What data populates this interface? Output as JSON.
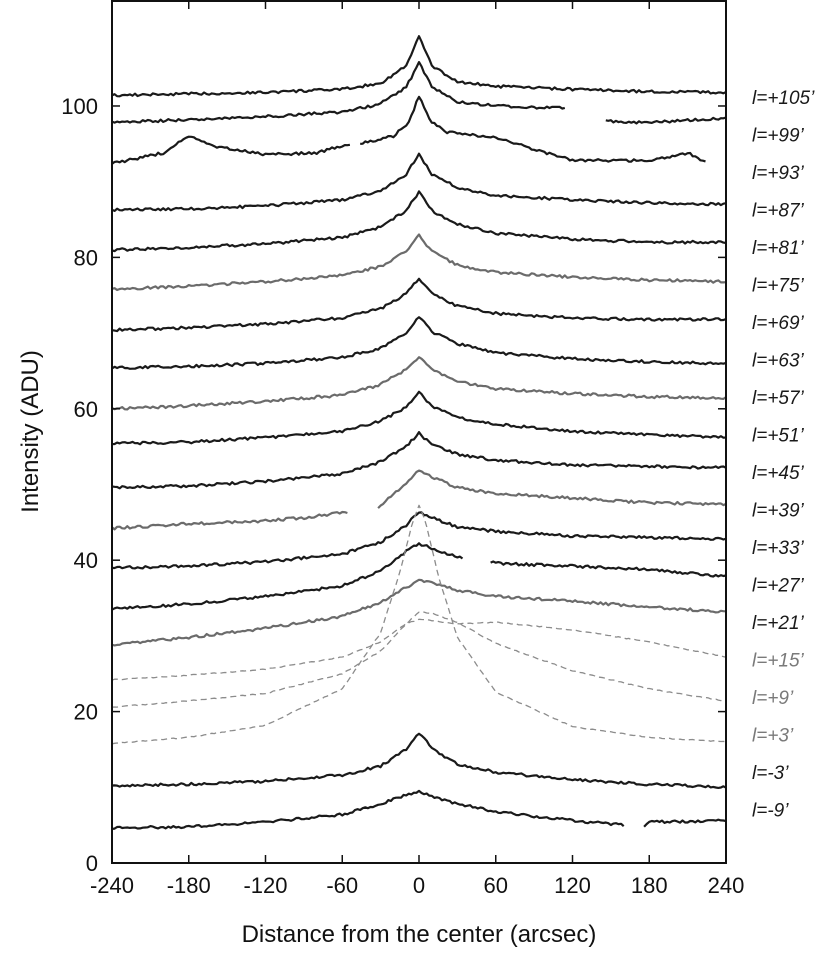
{
  "chart_data": {
    "type": "line",
    "title": "",
    "xlabel": "Distance from the center (arcsec)",
    "ylabel": "Intensity (ADU)",
    "xlim": [
      -240,
      240
    ],
    "ylim": [
      0,
      114
    ],
    "xticks": [
      -240,
      -180,
      -120,
      -60,
      0,
      60,
      120,
      180,
      240
    ],
    "xtick_labels": [
      "-240",
      "-180",
      "-120",
      "-60",
      "0",
      "60",
      "120",
      "180",
      "240"
    ],
    "yticks": [
      0,
      20,
      40,
      60,
      80,
      100
    ],
    "ytick_labels": [
      "0",
      "20",
      "40",
      "60",
      "80",
      "100"
    ],
    "grid": false,
    "legend": "none",
    "colors": {
      "black": "#1a1a1a",
      "gray": "#6b6b6b",
      "light": "#8c8c8c"
    },
    "series": [
      {
        "name": "l=+105’",
        "style": "black",
        "x": [
          -240,
          -180,
          -120,
          -60,
          -30,
          -10,
          0,
          10,
          30,
          60,
          120,
          180,
          240
        ],
        "y": [
          101.4,
          101.6,
          101.8,
          102.2,
          103.0,
          105.3,
          109.2,
          105.3,
          103.2,
          102.6,
          102.2,
          101.9,
          101.8
        ]
      },
      {
        "name": "l=+99’",
        "style": "black",
        "x": [
          -240,
          -180,
          -120,
          -60,
          -30,
          -10,
          0,
          10,
          30,
          60,
          115,
          145,
          180,
          240
        ],
        "y": [
          97.8,
          98.2,
          98.6,
          99.2,
          100.3,
          102.5,
          105.7,
          102.5,
          100.6,
          100.0,
          99.7,
          98.0,
          97.8,
          98.4
        ],
        "gaps": [
          [
            115,
            145
          ]
        ]
      },
      {
        "name": "l=+93’",
        "style": "black",
        "x": [
          -240,
          -200,
          -180,
          -160,
          -120,
          -80,
          -55,
          -45,
          -20,
          -8,
          0,
          8,
          20,
          60,
          120,
          180,
          210,
          225
        ],
        "y": [
          92.4,
          93.8,
          96.0,
          94.6,
          93.6,
          93.8,
          95.0,
          95.1,
          96.0,
          97.8,
          101.3,
          98.2,
          96.6,
          95.8,
          92.8,
          92.8,
          93.8,
          92.5
        ],
        "gaps": [
          [
            -53,
            -47
          ]
        ]
      },
      {
        "name": "l=+87’",
        "style": "black",
        "x": [
          -240,
          -180,
          -120,
          -60,
          -30,
          -10,
          0,
          10,
          30,
          60,
          120,
          180,
          240
        ],
        "y": [
          86.3,
          86.4,
          86.8,
          87.6,
          88.8,
          91.0,
          93.6,
          91.0,
          89.2,
          88.2,
          87.6,
          87.2,
          87.0
        ]
      },
      {
        "name": "l=+81’",
        "style": "black",
        "x": [
          -240,
          -180,
          -120,
          -60,
          -30,
          -10,
          0,
          10,
          30,
          60,
          120,
          180,
          240
        ],
        "y": [
          81.0,
          81.3,
          81.8,
          82.6,
          84.0,
          86.2,
          88.6,
          86.2,
          84.4,
          83.2,
          82.4,
          82.0,
          82.0
        ]
      },
      {
        "name": "l=+75’",
        "style": "gray",
        "x": [
          -240,
          -180,
          -120,
          -60,
          -30,
          -10,
          0,
          10,
          30,
          60,
          120,
          180,
          240
        ],
        "y": [
          75.8,
          76.2,
          76.8,
          77.6,
          78.8,
          80.8,
          82.9,
          80.8,
          79.0,
          78.0,
          77.4,
          77.0,
          76.8
        ]
      },
      {
        "name": "l=+69’",
        "style": "black",
        "x": [
          -240,
          -180,
          -120,
          -60,
          -30,
          -10,
          0,
          10,
          30,
          60,
          120,
          180,
          240
        ],
        "y": [
          70.4,
          70.7,
          71.2,
          72.0,
          73.2,
          75.2,
          77.2,
          75.2,
          73.6,
          72.6,
          72.0,
          71.8,
          71.8
        ]
      },
      {
        "name": "l=+63’",
        "style": "black",
        "x": [
          -240,
          -180,
          -120,
          -60,
          -30,
          -10,
          0,
          10,
          30,
          60,
          120,
          180,
          240
        ],
        "y": [
          65.4,
          65.6,
          66.0,
          66.8,
          68.0,
          70.0,
          72.2,
          70.2,
          68.6,
          67.4,
          66.6,
          66.2,
          66.0
        ]
      },
      {
        "name": "l=+57’",
        "style": "gray",
        "x": [
          -240,
          -180,
          -120,
          -60,
          -30,
          -10,
          0,
          10,
          30,
          60,
          120,
          180,
          240
        ],
        "y": [
          60.0,
          60.4,
          61.0,
          61.8,
          63.2,
          65.2,
          66.8,
          65.2,
          63.6,
          62.6,
          62.0,
          61.6,
          61.4
        ]
      },
      {
        "name": "l=+51’",
        "style": "black",
        "x": [
          -240,
          -180,
          -120,
          -60,
          -30,
          -10,
          0,
          10,
          30,
          60,
          120,
          180,
          240
        ],
        "y": [
          55.4,
          55.6,
          56.2,
          57.0,
          58.4,
          60.2,
          62.2,
          60.4,
          58.8,
          58.0,
          57.0,
          56.6,
          56.2
        ]
      },
      {
        "name": "l=+45’",
        "style": "black",
        "x": [
          -240,
          -180,
          -120,
          -60,
          -30,
          -10,
          0,
          10,
          30,
          60,
          120,
          180,
          240
        ],
        "y": [
          49.6,
          49.8,
          50.4,
          51.4,
          53.0,
          55.0,
          56.8,
          55.2,
          54.0,
          53.2,
          52.6,
          52.4,
          52.2
        ]
      },
      {
        "name": "l=+39’",
        "style": "gray",
        "x": [
          -240,
          -180,
          -120,
          -90,
          -55,
          -32,
          -10,
          0,
          10,
          30,
          60,
          120,
          180,
          240
        ],
        "y": [
          44.2,
          44.8,
          45.2,
          45.6,
          46.4,
          47.0,
          50.2,
          52.0,
          51.0,
          49.6,
          48.8,
          48.2,
          47.6,
          47.4
        ],
        "gaps": [
          [
            -55,
            -32
          ]
        ]
      },
      {
        "name": "l=+33’",
        "style": "black",
        "x": [
          -240,
          -180,
          -120,
          -60,
          -30,
          -10,
          0,
          10,
          30,
          60,
          120,
          180,
          240
        ],
        "y": [
          39.0,
          39.2,
          39.8,
          40.8,
          42.4,
          44.6,
          46.4,
          45.6,
          44.4,
          43.8,
          43.2,
          43.0,
          42.8
        ]
      },
      {
        "name": "l=+27’",
        "style": "black",
        "x": [
          -240,
          -180,
          -120,
          -60,
          -30,
          -10,
          0,
          10,
          30,
          55,
          60,
          120,
          180,
          240
        ],
        "y": [
          33.6,
          34.2,
          35.2,
          36.6,
          38.6,
          41.2,
          42.2,
          41.6,
          40.4,
          39.8,
          39.6,
          39.2,
          38.8,
          37.8
        ],
        "gaps": [
          [
            35,
            55
          ]
        ]
      },
      {
        "name": "l=+21’",
        "style": "gray",
        "x": [
          -240,
          -180,
          -120,
          -60,
          -30,
          -10,
          0,
          10,
          30,
          60,
          120,
          180,
          240
        ],
        "y": [
          28.8,
          29.8,
          31.0,
          32.6,
          34.4,
          36.4,
          37.4,
          37.0,
          36.0,
          35.2,
          34.6,
          33.8,
          33.2
        ]
      },
      {
        "name": "l=+15’",
        "style": "dash",
        "x": [
          -240,
          -180,
          -120,
          -60,
          -30,
          -10,
          0,
          10,
          30,
          60,
          120,
          180,
          240
        ],
        "y": [
          24.2,
          24.8,
          25.6,
          27.2,
          29.2,
          31.6,
          32.2,
          32.0,
          31.6,
          31.8,
          30.8,
          29.2,
          27.2
        ]
      },
      {
        "name": "l=+9’",
        "style": "dash",
        "x": [
          -240,
          -180,
          -120,
          -60,
          -30,
          -10,
          0,
          10,
          30,
          60,
          120,
          180,
          240
        ],
        "y": [
          20.6,
          21.4,
          22.4,
          25.0,
          28.0,
          31.6,
          33.2,
          33.0,
          31.8,
          29.0,
          25.4,
          23.0,
          21.4
        ]
      },
      {
        "name": "l=+3’",
        "style": "dash",
        "x": [
          -240,
          -180,
          -120,
          -60,
          -30,
          -15,
          -5,
          0,
          5,
          15,
          30,
          60,
          120,
          180,
          240
        ],
        "y": [
          15.8,
          16.6,
          18.2,
          23.0,
          30.4,
          38.4,
          45.0,
          47.2,
          45.2,
          38.0,
          29.8,
          22.6,
          18.0,
          16.6,
          16.0
        ]
      },
      {
        "name": "l=-3’",
        "style": "black",
        "x": [
          -240,
          -180,
          -120,
          -60,
          -30,
          -10,
          0,
          10,
          30,
          60,
          120,
          180,
          240
        ],
        "y": [
          10.2,
          10.4,
          10.8,
          11.6,
          12.8,
          15.0,
          17.2,
          15.2,
          13.0,
          12.0,
          11.0,
          10.4,
          10.0
        ]
      },
      {
        "name": "l=-9’",
        "style": "black",
        "x": [
          -240,
          -180,
          -120,
          -60,
          -30,
          -10,
          0,
          10,
          30,
          60,
          120,
          160,
          175,
          180,
          240
        ],
        "y": [
          4.6,
          4.8,
          5.4,
          6.4,
          7.8,
          9.0,
          9.4,
          8.8,
          7.8,
          6.8,
          5.6,
          5.0,
          4.8,
          5.4,
          5.6
        ],
        "gaps": [
          [
            160,
            175
          ]
        ]
      }
    ]
  }
}
